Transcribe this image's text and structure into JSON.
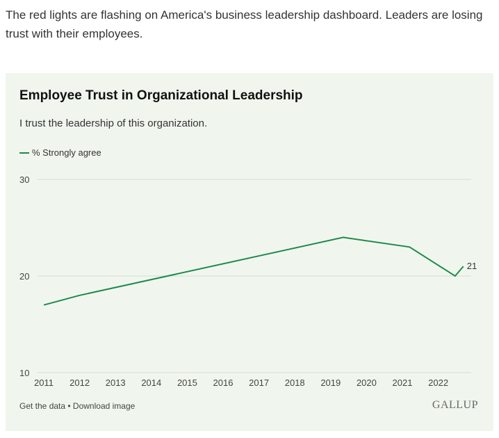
{
  "intro": "The red lights are flashing on America's business leadership dashboard. Leaders are losing trust with their employees.",
  "footer": {
    "get_data": "Get the data",
    "sep": " • ",
    "download": "Download image",
    "logo": "GALLUP"
  },
  "chart_data": {
    "type": "line",
    "title": "Employee Trust in Organizational Leadership",
    "subtitle": "I trust the leadership of this organization.",
    "xlabel": "",
    "ylabel": "",
    "ylim": [
      10,
      30
    ],
    "yticks": [
      10,
      20,
      30
    ],
    "xticks": [
      "2011",
      "2012",
      "2013",
      "2014",
      "2015",
      "2016",
      "2017",
      "2018",
      "2019",
      "2020",
      "2021",
      "2022"
    ],
    "grid": true,
    "legend": "top-left",
    "color": "#1e8a4c",
    "series": [
      {
        "name": "% Strongly agree",
        "x": [
          2011,
          2012,
          2019.35,
          2021.2,
          2022.47,
          2022.7
        ],
        "y": [
          17,
          18,
          24,
          23,
          20,
          21
        ]
      }
    ],
    "end_label": "21"
  }
}
